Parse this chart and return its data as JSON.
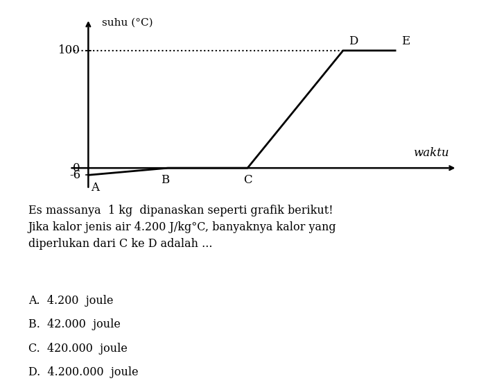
{
  "background_color": "#ffffff",
  "points": {
    "A": [
      0,
      -6
    ],
    "B": [
      1.5,
      0
    ],
    "C": [
      3.0,
      0
    ],
    "D": [
      4.8,
      100
    ],
    "E": [
      5.8,
      100
    ]
  },
  "dotted_y": 100,
  "line_color": "#000000",
  "dotted_color": "#000000",
  "font_size": 12,
  "ylabel": "suhu (°C)",
  "xlabel": "waktu",
  "xlim": [
    -0.4,
    7.0
  ],
  "ylim": [
    -20,
    130
  ],
  "text_lines": [
    "Es massanya  1 kg  dipanaskan seperti grafik berikut!",
    "Jika kalor jenis air 4.200 J/kg°C, banyaknya kalor yang",
    "diperlukan dari C ke D adalah ..."
  ],
  "choices": [
    "A.  4.200  joule",
    "B.  42.000  joule",
    "C.  420.000  joule",
    "D.  4.200.000  joule"
  ]
}
